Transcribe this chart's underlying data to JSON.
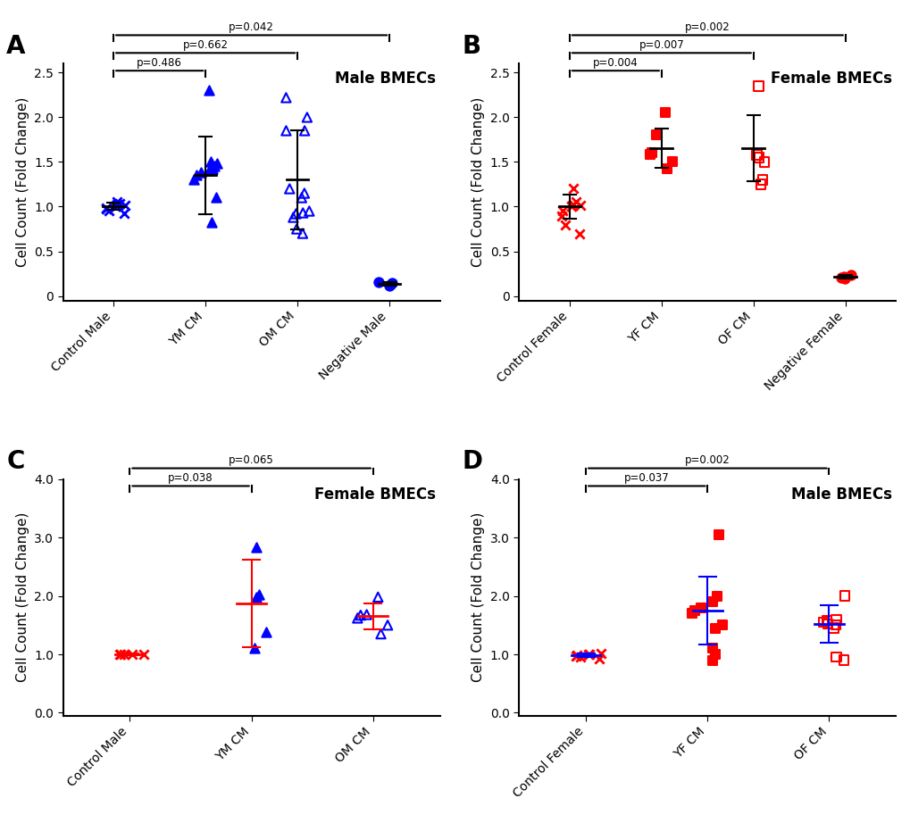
{
  "panel_A": {
    "title": "Male BMECs",
    "label": "A",
    "groups": [
      "Control Male",
      "YM CM",
      "OM CM",
      "Negative Male"
    ],
    "ylim": [
      -0.05,
      2.6
    ],
    "yticks": [
      0.0,
      0.5,
      1.0,
      1.5,
      2.0,
      2.5
    ],
    "yticklabels": [
      "0",
      "0.5",
      "1.0",
      "1.5",
      "2.0",
      "2.5"
    ],
    "color": "#0000FF",
    "data": {
      "Control Male": [
        0.93,
        0.95,
        0.97,
        0.98,
        1.0,
        1.0,
        1.01,
        1.02,
        1.03,
        1.05
      ],
      "YM CM": [
        0.83,
        1.1,
        1.3,
        1.35,
        1.38,
        1.4,
        1.42,
        1.45,
        1.48,
        1.5,
        2.3
      ],
      "OM CM": [
        0.7,
        0.75,
        0.88,
        0.92,
        0.93,
        0.95,
        1.1,
        1.15,
        1.2,
        1.85,
        1.85,
        2.0,
        2.22
      ],
      "Negative Male": [
        0.12,
        0.13,
        0.15,
        0.16
      ]
    },
    "means": {
      "Control Male": 1.0,
      "YM CM": 1.35,
      "OM CM": 1.3,
      "Negative Male": 0.14
    },
    "sds": {
      "Control Male": 0.04,
      "YM CM": 0.43,
      "OM CM": 0.55,
      "Negative Male": 0.02
    },
    "markers": {
      "Control Male": "x",
      "YM CM": "^",
      "OM CM": "^",
      "Negative Male": "o"
    },
    "filled": {
      "Control Male": false,
      "YM CM": true,
      "OM CM": false,
      "Negative Male": true
    },
    "colors": {
      "Control Male": "#0000FF",
      "YM CM": "#0000FF",
      "OM CM": "#0000FF",
      "Negative Male": "#0000FF"
    },
    "err_color": "#000000",
    "brackets": [
      {
        "from": 0,
        "to": 1,
        "level": 0,
        "label": "p=0.486"
      },
      {
        "from": 0,
        "to": 2,
        "level": 1,
        "label": "p=0.662"
      },
      {
        "from": 0,
        "to": 3,
        "level": 2,
        "label": "p=0.042"
      }
    ]
  },
  "panel_B": {
    "title": "Female BMECs",
    "label": "B",
    "groups": [
      "Control Female",
      "YF CM",
      "OF CM",
      "Negative Female"
    ],
    "ylim": [
      -0.05,
      2.6
    ],
    "yticks": [
      0.0,
      0.5,
      1.0,
      1.5,
      2.0,
      2.5
    ],
    "yticklabels": [
      "0",
      "0.5",
      "1.0",
      "1.5",
      "2.0",
      "2.5"
    ],
    "data": {
      "Control Female": [
        0.7,
        0.8,
        0.9,
        0.95,
        1.0,
        1.0,
        1.01,
        1.02,
        1.05,
        1.2
      ],
      "YF CM": [
        1.42,
        1.5,
        1.58,
        1.6,
        1.8,
        2.05
      ],
      "OF CM": [
        1.25,
        1.3,
        1.5,
        1.55,
        1.58,
        2.35
      ],
      "Negative Female": [
        0.2,
        0.21,
        0.22,
        0.24
      ]
    },
    "means": {
      "Control Female": 1.0,
      "YF CM": 1.65,
      "OF CM": 1.65,
      "Negative Female": 0.22
    },
    "sds": {
      "Control Female": 0.13,
      "YF CM": 0.22,
      "OF CM": 0.37,
      "Negative Female": 0.02
    },
    "markers": {
      "Control Female": "x",
      "YF CM": "s",
      "OF CM": "s",
      "Negative Female": "o"
    },
    "filled": {
      "Control Female": false,
      "YF CM": true,
      "OF CM": false,
      "Negative Female": true
    },
    "colors": {
      "Control Female": "#FF0000",
      "YF CM": "#FF0000",
      "OF CM": "#FF0000",
      "Negative Female": "#FF0000"
    },
    "err_color": "#000000",
    "brackets": [
      {
        "from": 0,
        "to": 1,
        "level": 0,
        "label": "p=0.004"
      },
      {
        "from": 0,
        "to": 2,
        "level": 1,
        "label": "p=0.007"
      },
      {
        "from": 0,
        "to": 3,
        "level": 2,
        "label": "p=0.002"
      }
    ]
  },
  "panel_C": {
    "title": "Female BMECs",
    "label": "C",
    "groups": [
      "Control Male",
      "YM CM",
      "OM CM"
    ],
    "ylim": [
      -0.05,
      4.0
    ],
    "yticks": [
      0.0,
      1.0,
      2.0,
      3.0,
      4.0
    ],
    "yticklabels": [
      "0.0",
      "1.0",
      "2.0",
      "3.0",
      "4.0"
    ],
    "data": {
      "Control Male": [
        1.0,
        1.0,
        1.0,
        1.0,
        1.0
      ],
      "YM CM": [
        1.1,
        1.38,
        1.98,
        2.02,
        2.84
      ],
      "OM CM": [
        1.35,
        1.5,
        1.62,
        1.67,
        1.68,
        1.98
      ]
    },
    "means": {
      "Control Male": 1.0,
      "YM CM": 1.87,
      "OM CM": 1.65
    },
    "sds": {
      "Control Male": 0.02,
      "YM CM": 0.75,
      "OM CM": 0.22
    },
    "markers": {
      "Control Male": "x",
      "YM CM": "^",
      "OM CM": "^"
    },
    "filled": {
      "Control Male": false,
      "YM CM": true,
      "OM CM": false
    },
    "colors": {
      "Control Male": "#FF0000",
      "YM CM": "#0000FF",
      "OM CM": "#0000FF"
    },
    "err_color": "#FF0000",
    "brackets": [
      {
        "from": 0,
        "to": 1,
        "level": 0,
        "label": "p=0.038"
      },
      {
        "from": 0,
        "to": 2,
        "level": 1,
        "label": "p=0.065"
      }
    ]
  },
  "panel_D": {
    "title": "Male BMECs",
    "label": "D",
    "groups": [
      "Control Female",
      "YF CM",
      "OF CM"
    ],
    "ylim": [
      -0.05,
      4.0
    ],
    "yticks": [
      0.0,
      1.0,
      2.0,
      3.0,
      4.0
    ],
    "yticklabels": [
      "0.0",
      "1.0",
      "2.0",
      "3.0",
      "4.0"
    ],
    "data": {
      "Control Female": [
        0.92,
        0.95,
        0.97,
        0.98,
        1.0,
        1.0,
        1.01
      ],
      "YF CM": [
        0.9,
        1.0,
        1.1,
        1.45,
        1.5,
        1.7,
        1.75,
        1.8,
        1.9,
        2.0,
        3.05
      ],
      "OF CM": [
        0.9,
        0.95,
        1.45,
        1.5,
        1.52,
        1.55,
        1.58,
        1.6,
        2.0
      ]
    },
    "means": {
      "Control Female": 0.98,
      "YF CM": 1.75,
      "OF CM": 1.52
    },
    "sds": {
      "Control Female": 0.03,
      "YF CM": 0.58,
      "OF CM": 0.32
    },
    "markers": {
      "Control Female": "x",
      "YF CM": "s",
      "OF CM": "s"
    },
    "filled": {
      "Control Female": false,
      "YF CM": true,
      "OF CM": false
    },
    "colors": {
      "Control Female": "#FF0000",
      "YF CM": "#FF0000",
      "OF CM": "#FF0000"
    },
    "err_color": "#0000FF",
    "brackets": [
      {
        "from": 0,
        "to": 1,
        "level": 0,
        "label": "p=0.037"
      },
      {
        "from": 0,
        "to": 2,
        "level": 1,
        "label": "p=0.002"
      }
    ]
  },
  "ylabel": "Cell Count (Fold Change)",
  "background": "#FFFFFF"
}
